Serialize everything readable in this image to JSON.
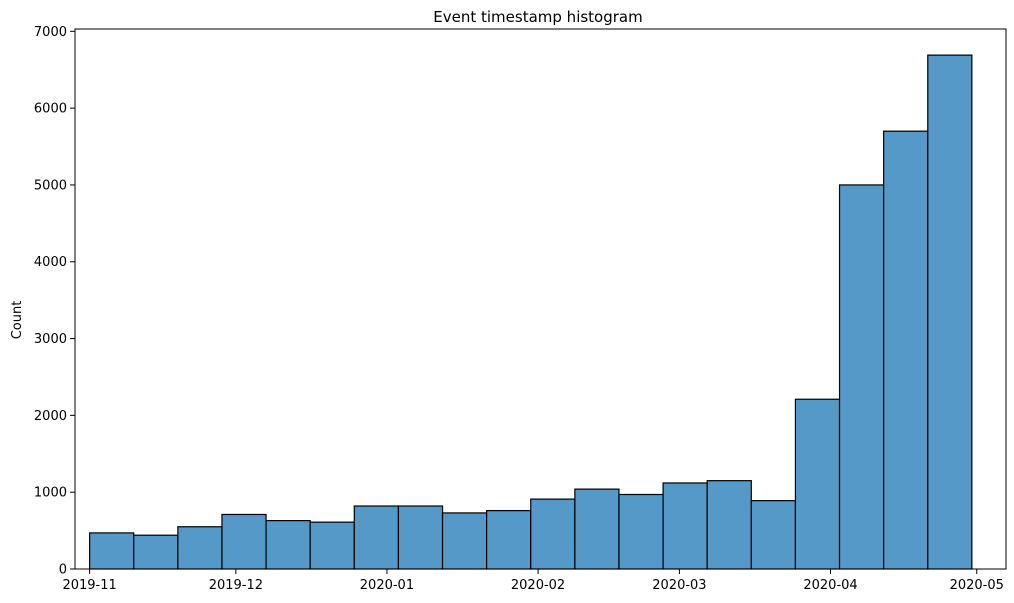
{
  "chart_data": {
    "type": "bar",
    "title": "Event timestamp histogram",
    "xlabel": "",
    "ylabel": "Count",
    "bar_color": "#5499c7",
    "edge_color": "#000000",
    "x_range": [
      "2019-10-29",
      "2020-05-07"
    ],
    "bin_start": "2019-11-01",
    "bin_end": "2020-04-30",
    "xticks": [
      "2019-11",
      "2019-12",
      "2020-01",
      "2020-02",
      "2020-03",
      "2020-04",
      "2020-05"
    ],
    "yticks": [
      0,
      1000,
      2000,
      3000,
      4000,
      5000,
      6000,
      7000
    ],
    "ylim": [
      0,
      7030
    ],
    "values": [
      470,
      440,
      550,
      710,
      630,
      610,
      820,
      820,
      730,
      760,
      910,
      1040,
      970,
      1120,
      1150,
      890,
      2210,
      5000,
      5700,
      6690
    ],
    "grid": false,
    "legend": "none"
  }
}
